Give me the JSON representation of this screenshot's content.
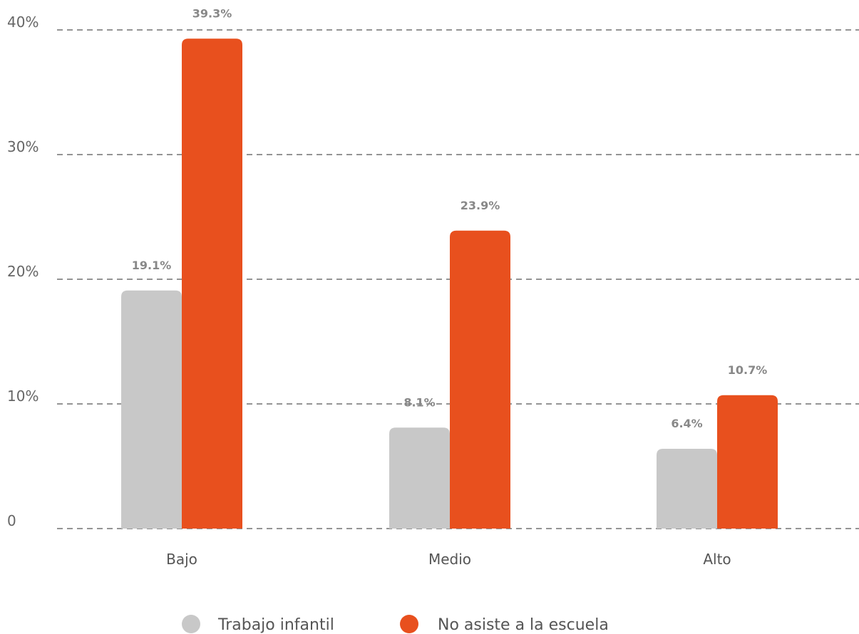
{
  "chart_data": {
    "type": "bar",
    "categories": [
      "Bajo",
      "Medio",
      "Alto"
    ],
    "series": [
      {
        "name": "Trabajo infantil",
        "values": [
          19.1,
          8.1,
          6.4
        ],
        "labels": [
          "19.1%",
          "8.1%",
          "6.4%"
        ],
        "color": "#c8c8c8"
      },
      {
        "name": "No asiste a la escuela",
        "values": [
          39.3,
          23.9,
          10.7
        ],
        "labels": [
          "39.3%",
          "23.9%",
          "10.7%"
        ],
        "color": "#e8501e"
      }
    ],
    "yticks": [
      0,
      10,
      20,
      30,
      40
    ],
    "ytick_labels": [
      "0",
      "10%",
      "20%",
      "30%",
      "40%"
    ],
    "ylim": [
      0,
      40
    ],
    "grid": true,
    "legend_position": "bottom"
  }
}
